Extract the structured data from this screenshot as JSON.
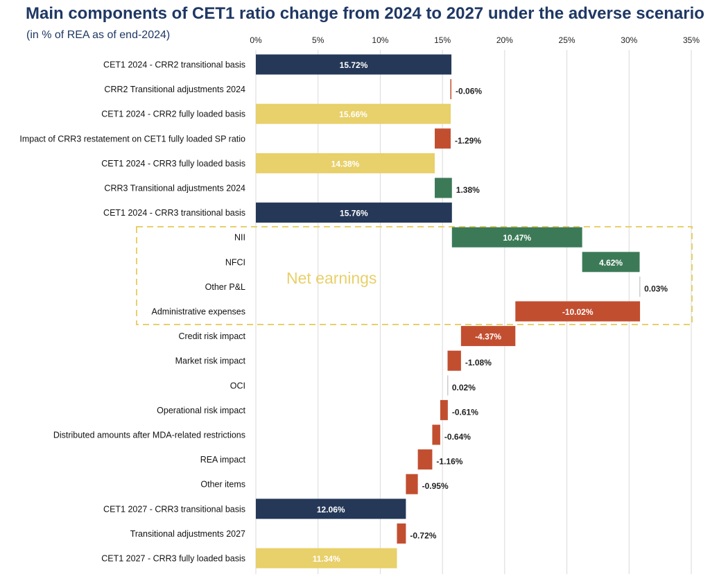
{
  "chart_data": {
    "type": "bar",
    "subtype": "waterfall-horizontal",
    "title": "Main components of CET1 ratio change from 2024 to 2027 under the adverse scenario",
    "subtitle": "(in % of REA as of end-2024)",
    "xlabel": "",
    "ylabel": "",
    "xlim": [
      0,
      35
    ],
    "x_ticks": [
      0,
      5,
      10,
      15,
      20,
      25,
      30,
      35
    ],
    "x_tick_labels": [
      "0%",
      "5%",
      "10%",
      "15%",
      "20%",
      "25%",
      "30%",
      "35%"
    ],
    "grid": true,
    "legend": "none",
    "annotation": {
      "label": "Net earnings",
      "covers_categories": [
        "NII",
        "NFCI",
        "Other P&L",
        "Administrative expenses"
      ],
      "color": "#e8d06a"
    },
    "colors": {
      "transitional_total": "#253858",
      "fully_loaded_total": "#e8d06a",
      "increase": "#3c7a57",
      "decrease": "#c24e30",
      "negligible": "#cccccc"
    },
    "bars": [
      {
        "category": "CET1 2024 - CRR2 transitional basis",
        "start": 0,
        "end": 15.72,
        "label": "15.72%",
        "kind": "transitional_total"
      },
      {
        "category": "CRR2 Transitional adjustments 2024",
        "start": 15.72,
        "end": 15.66,
        "label": "-0.06%",
        "kind": "decrease"
      },
      {
        "category": "CET1 2024 - CRR2 fully loaded basis",
        "start": 0,
        "end": 15.66,
        "label": "15.66%",
        "kind": "fully_loaded_total"
      },
      {
        "category": "Impact of CRR3 restatement on CET1 fully loaded SP ratio",
        "start": 15.66,
        "end": 14.38,
        "label": "-1.29%",
        "kind": "decrease"
      },
      {
        "category": "CET1 2024 - CRR3 fully loaded basis",
        "start": 0,
        "end": 14.38,
        "label": "14.38%",
        "kind": "fully_loaded_total"
      },
      {
        "category": "CRR3 Transitional adjustments 2024",
        "start": 14.38,
        "end": 15.76,
        "label": "1.38%",
        "kind": "increase"
      },
      {
        "category": "CET1 2024 - CRR3 transitional basis",
        "start": 0,
        "end": 15.76,
        "label": "15.76%",
        "kind": "transitional_total"
      },
      {
        "category": "NII",
        "start": 15.76,
        "end": 26.23,
        "label": "10.47%",
        "kind": "increase"
      },
      {
        "category": "NFCI",
        "start": 26.23,
        "end": 30.85,
        "label": "4.62%",
        "kind": "increase"
      },
      {
        "category": "Other P&L",
        "start": 30.85,
        "end": 30.88,
        "label": "0.03%",
        "kind": "negligible"
      },
      {
        "category": "Administrative expenses",
        "start": 30.88,
        "end": 20.86,
        "label": "-10.02%",
        "kind": "decrease"
      },
      {
        "category": "Credit risk impact",
        "start": 20.86,
        "end": 16.49,
        "label": "-4.37%",
        "kind": "decrease"
      },
      {
        "category": "Market risk impact",
        "start": 16.49,
        "end": 15.41,
        "label": "-1.08%",
        "kind": "decrease"
      },
      {
        "category": "OCI",
        "start": 15.41,
        "end": 15.43,
        "label": "0.02%",
        "kind": "negligible"
      },
      {
        "category": "Operational risk impact",
        "start": 15.43,
        "end": 14.82,
        "label": "-0.61%",
        "kind": "decrease"
      },
      {
        "category": "Distributed amounts after MDA-related restrictions",
        "start": 14.82,
        "end": 14.18,
        "label": "-0.64%",
        "kind": "decrease"
      },
      {
        "category": "REA impact",
        "start": 14.18,
        "end": 13.02,
        "label": "-1.16%",
        "kind": "decrease"
      },
      {
        "category": "Other items",
        "start": 13.02,
        "end": 12.06,
        "label": "-0.95%",
        "kind": "decrease"
      },
      {
        "category": "CET1 2027 - CRR3 transitional basis",
        "start": 0,
        "end": 12.06,
        "label": "12.06%",
        "kind": "transitional_total"
      },
      {
        "category": "Transitional adjustments 2027",
        "start": 12.06,
        "end": 11.34,
        "label": "-0.72%",
        "kind": "decrease"
      },
      {
        "category": "CET1 2027 - CRR3 fully loaded basis",
        "start": 0,
        "end": 11.34,
        "label": "11.34%",
        "kind": "fully_loaded_total"
      }
    ]
  }
}
